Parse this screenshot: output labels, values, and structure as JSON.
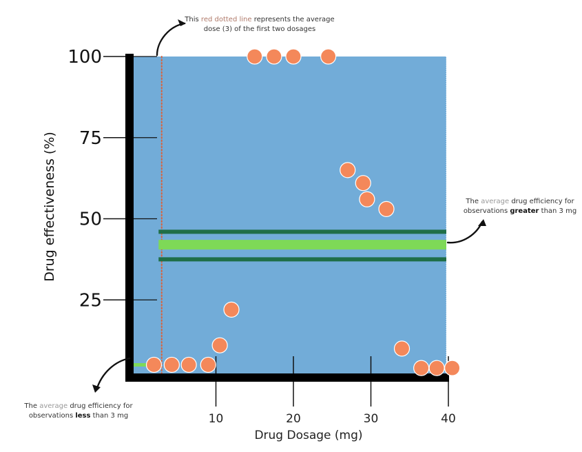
{
  "chart_data": {
    "type": "scatter",
    "xlabel": "Drug Dosage (mg)",
    "ylabel": "Drug effectiveness (%)",
    "xlim": [
      0,
      40
    ],
    "ylim": [
      0,
      100
    ],
    "x_ticks": [
      10,
      20,
      30,
      40
    ],
    "y_ticks": [
      25,
      50,
      75,
      100
    ],
    "background_color": "#72acd8",
    "point_color": "#f4885a",
    "points": [
      {
        "x": 2,
        "y": 5
      },
      {
        "x": 4.3,
        "y": 5
      },
      {
        "x": 6.5,
        "y": 5
      },
      {
        "x": 9,
        "y": 5
      },
      {
        "x": 10.5,
        "y": 11
      },
      {
        "x": 12,
        "y": 22
      },
      {
        "x": 15,
        "y": 100
      },
      {
        "x": 17.5,
        "y": 100
      },
      {
        "x": 20,
        "y": 100
      },
      {
        "x": 24.5,
        "y": 100
      },
      {
        "x": 27,
        "y": 65
      },
      {
        "x": 29,
        "y": 61
      },
      {
        "x": 29.5,
        "y": 56
      },
      {
        "x": 32,
        "y": 53
      },
      {
        "x": 34,
        "y": 10
      },
      {
        "x": 36.5,
        "y": 4
      },
      {
        "x": 38.5,
        "y": 4
      },
      {
        "x": 40.5,
        "y": 4
      }
    ],
    "reference_lines": [
      {
        "kind": "vertical",
        "x": 3,
        "color": "#d9623b",
        "style": "dotted"
      },
      {
        "kind": "horizontal",
        "y": 46,
        "color": "#1f6e47"
      },
      {
        "kind": "horizontal",
        "y": 42,
        "color": "#7ed957"
      },
      {
        "kind": "horizontal",
        "y": 37.5,
        "color": "#1f6e47"
      },
      {
        "kind": "horizontal",
        "y": 5,
        "color": "#7ed957"
      }
    ]
  },
  "annotations": {
    "top": {
      "prefix": "This ",
      "highlight": "red dotted line",
      "suffix": " represents the average",
      "line2": "dose (3) of the first two dosages"
    },
    "right": {
      "prefix": "The ",
      "highlight": "average",
      "suffix": " drug efficiency for",
      "line2_prefix": "observations ",
      "line2_bold": "greater",
      "line2_suffix": " than 3 mg"
    },
    "bottom": {
      "prefix": "The ",
      "highlight": "average",
      "suffix": " drug efficiency for",
      "line2_prefix": "observations ",
      "line2_bold": "less",
      "line2_suffix": " than 3 mg"
    }
  }
}
